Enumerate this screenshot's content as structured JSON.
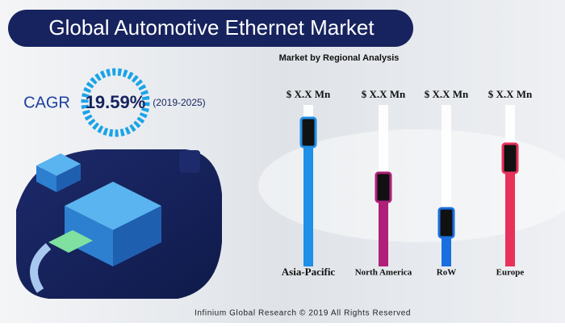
{
  "header": {
    "title": "Global Automotive Ethernet Market"
  },
  "cagr": {
    "label": "CAGR",
    "value": "19.59%",
    "period": "(2019-2025)"
  },
  "footer": "Infinium Global Research © 2019 All Rights Reserved",
  "chart_data": {
    "type": "bar",
    "title": "Market by Regional Analysis",
    "categories": [
      "Asia-Pacific",
      "North America",
      "RoW",
      "Europe"
    ],
    "values": [
      92,
      58,
      36,
      76
    ],
    "value_labels": [
      "$ X.X Mn",
      "$ X.X Mn",
      "$ X.X Mn",
      "$ X.X Mn"
    ],
    "colors": [
      "#1e90e8",
      "#b0207a",
      "#1a6fe0",
      "#e8315a"
    ],
    "ylim": [
      0,
      100
    ]
  }
}
